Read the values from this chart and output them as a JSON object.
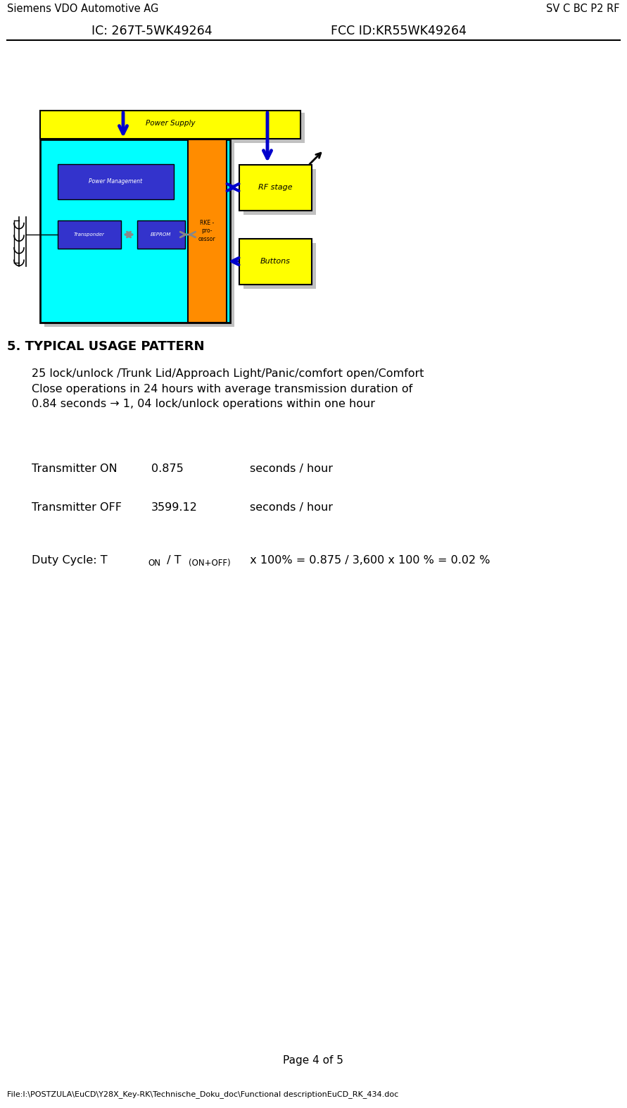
{
  "header_left": "Siemens VDO Automotive AG",
  "header_right": "SV C BC P2 RF",
  "subheader_left": "IC: 267T-5WK49264",
  "subheader_right": "FCC ID:KR55WK49264",
  "section_title": "5. TYPICAL USAGE PATTERN",
  "paragraph": "25 lock/unlock /Trunk Lid/Approach Light/Panic/comfort open/Comfort\nClose operations in 24 hours with average transmission duration of\n0.84 seconds → 1, 04 lock/unlock operations within one hour",
  "tx_on_label": "Transmitter ON",
  "tx_on_value": "0.875",
  "tx_on_unit": "seconds / hour",
  "tx_off_label": "Transmitter OFF",
  "tx_off_value": "3599.12",
  "tx_off_unit": "seconds / hour",
  "page_label": "Page 4 of 5",
  "footer": "File:I:\\POSTZULA\\EuCD\\Y28X_Key-RK\\Technische_Doku_doc\\Functional descriptionEuCD_RK_434.doc",
  "bg_color": "#ffffff",
  "text_color": "#000000",
  "diagram": {
    "power_supply_color": "#ffff00",
    "main_block_color": "#00ffff",
    "processor_color": "#ff8c00",
    "rf_stage_color": "#ffff00",
    "buttons_color": "#ffff00",
    "power_mgmt_color": "#3333cc",
    "transponder_color": "#3333cc",
    "eeprom_color": "#3333cc",
    "blue_arrow_color": "#0000cc",
    "gray_arrow_color": "#888888",
    "shadow_color": "#c0c0c0"
  }
}
